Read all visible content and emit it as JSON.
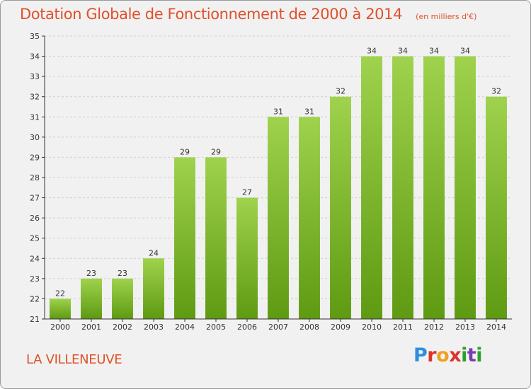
{
  "header": {
    "title": "Dotation Globale de Fonctionnement de 2000 à 2014",
    "unit": "(en milliers d'€)"
  },
  "footer": {
    "commune": "LA VILLENEUVE",
    "logo": {
      "text": "Proxiti",
      "colors": [
        "#2c8ee0",
        "#d8362c",
        "#f0a020",
        "#2ca02c",
        "#7a3db0"
      ]
    }
  },
  "colors": {
    "bar_top": "#9fd24d",
    "bar_bottom": "#5e9a12",
    "title": "#e0502b",
    "grid": "#cfcfcf",
    "axis": "#333333"
  },
  "chart_data": {
    "type": "bar",
    "title": "Dotation Globale de Fonctionnement de 2000 à 2014",
    "subtitle": "(en milliers d'€)",
    "categories": [
      "2000",
      "2001",
      "2002",
      "2003",
      "2004",
      "2005",
      "2006",
      "2007",
      "2008",
      "2009",
      "2010",
      "2011",
      "2012",
      "2013",
      "2014"
    ],
    "values": [
      22,
      23,
      23,
      24,
      29,
      29,
      27,
      31,
      31,
      32,
      34,
      34,
      34,
      34,
      32
    ],
    "ylim": [
      21,
      35
    ],
    "yticks": [
      21,
      22,
      23,
      24,
      25,
      26,
      27,
      28,
      29,
      30,
      31,
      32,
      33,
      34,
      35
    ],
    "grid": true,
    "data_labels": true,
    "xlabel": "",
    "ylabel": ""
  }
}
